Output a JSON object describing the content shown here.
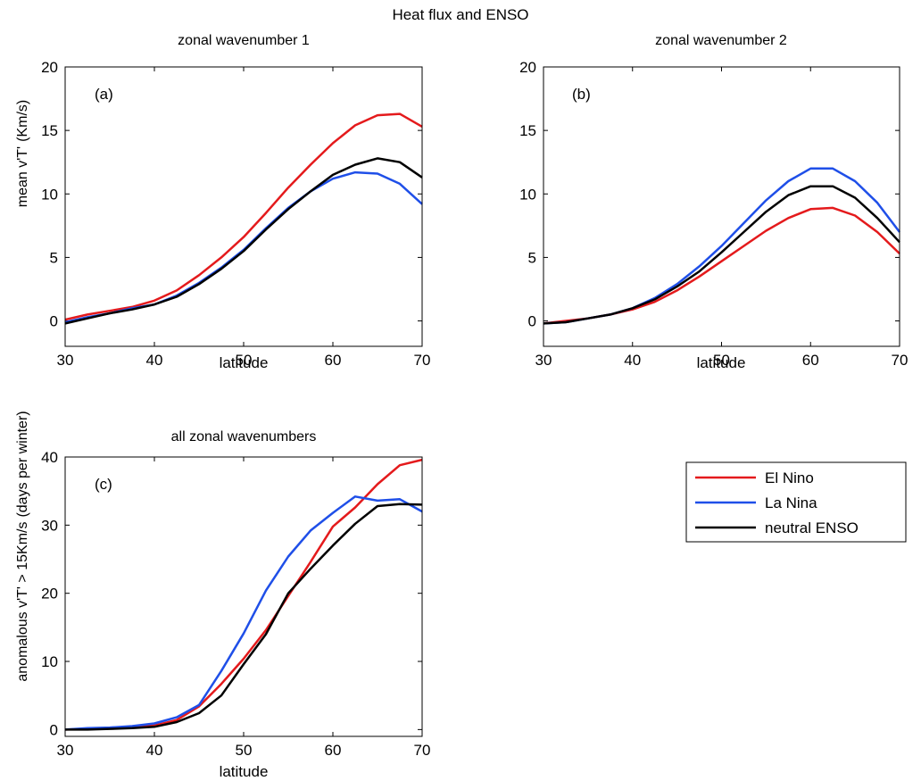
{
  "figure": {
    "suptitle": "Heat flux and ENSO"
  },
  "legend": {
    "placement": "right",
    "entries": [
      {
        "label": "El Nino",
        "color": "#e41a1c"
      },
      {
        "label": "La Nina",
        "color": "#1f4fe8"
      },
      {
        "label": "neutral ENSO",
        "color": "#000000"
      }
    ]
  },
  "chart_data": [
    {
      "type": "line",
      "title": "zonal wavenumber 1",
      "panel_label": "(a)",
      "xlabel": "latitude",
      "ylabel_main": "mean v'T'",
      "ylabel_unit": "(Km/s)",
      "xlim": [
        30,
        70
      ],
      "ylim": [
        -2,
        20
      ],
      "xticks": [
        30,
        40,
        50,
        60,
        70
      ],
      "yticks": [
        0,
        5,
        10,
        15,
        20
      ],
      "grid": false,
      "x": [
        30,
        32.5,
        35,
        37.5,
        40,
        42.5,
        45,
        47.5,
        50,
        52.5,
        55,
        57.5,
        60,
        62.5,
        65,
        67.5,
        70
      ],
      "series": [
        {
          "name": "El Nino",
          "color": "#e41a1c",
          "values": [
            0.1,
            0.5,
            0.8,
            1.1,
            1.6,
            2.4,
            3.6,
            5.0,
            6.6,
            8.5,
            10.5,
            12.3,
            14.0,
            15.4,
            16.2,
            16.3,
            15.3
          ]
        },
        {
          "name": "La Nina",
          "color": "#1f4fe8",
          "values": [
            -0.1,
            0.3,
            0.6,
            1.0,
            1.3,
            2.0,
            3.0,
            4.2,
            5.6,
            7.3,
            8.9,
            10.2,
            11.2,
            11.7,
            11.6,
            10.8,
            9.2
          ]
        },
        {
          "name": "neutral ENSO",
          "color": "#000000",
          "values": [
            -0.2,
            0.2,
            0.6,
            0.9,
            1.3,
            1.9,
            2.9,
            4.1,
            5.5,
            7.2,
            8.8,
            10.2,
            11.5,
            12.3,
            12.8,
            12.5,
            11.3
          ]
        }
      ]
    },
    {
      "type": "line",
      "title": "zonal wavenumber 2",
      "panel_label": "(b)",
      "xlabel": "latitude",
      "xlim": [
        30,
        70
      ],
      "ylim": [
        -2,
        20
      ],
      "xticks": [
        30,
        40,
        50,
        60,
        70
      ],
      "yticks": [
        0,
        5,
        10,
        15,
        20
      ],
      "grid": false,
      "x": [
        30,
        32.5,
        35,
        37.5,
        40,
        42.5,
        45,
        47.5,
        50,
        52.5,
        55,
        57.5,
        60,
        62.5,
        65,
        67.5,
        70
      ],
      "series": [
        {
          "name": "El Nino",
          "color": "#e41a1c",
          "values": [
            -0.2,
            0.0,
            0.2,
            0.5,
            0.9,
            1.5,
            2.4,
            3.5,
            4.7,
            5.9,
            7.1,
            8.1,
            8.8,
            8.9,
            8.3,
            7.0,
            5.3
          ]
        },
        {
          "name": "La Nina",
          "color": "#1f4fe8",
          "values": [
            -0.2,
            -0.1,
            0.2,
            0.5,
            1.0,
            1.8,
            2.9,
            4.3,
            5.9,
            7.7,
            9.5,
            11.0,
            12.0,
            12.0,
            11.0,
            9.3,
            7.0
          ]
        },
        {
          "name": "neutral ENSO",
          "color": "#000000",
          "values": [
            -0.2,
            -0.1,
            0.2,
            0.5,
            1.0,
            1.7,
            2.7,
            3.9,
            5.4,
            7.0,
            8.6,
            9.9,
            10.6,
            10.6,
            9.7,
            8.1,
            6.2
          ]
        }
      ]
    },
    {
      "type": "line",
      "title": "all zonal wavenumbers",
      "panel_label": "(c)",
      "xlabel": "latitude",
      "ylabel_main": "anomalous v'T' > 15Km/s",
      "ylabel_unit": "(days per winter)",
      "xlim": [
        30,
        70
      ],
      "ylim": [
        -1,
        40
      ],
      "xticks": [
        30,
        40,
        50,
        60,
        70
      ],
      "yticks": [
        0,
        10,
        20,
        30,
        40
      ],
      "grid": false,
      "x": [
        30,
        32.5,
        35,
        37.5,
        40,
        42.5,
        45,
        47.5,
        50,
        52.5,
        55,
        57.5,
        60,
        62.5,
        65,
        67.5,
        70
      ],
      "series": [
        {
          "name": "El Nino",
          "color": "#e41a1c",
          "values": [
            0.0,
            0.1,
            0.2,
            0.4,
            0.6,
            1.4,
            3.4,
            6.7,
            10.4,
            14.6,
            19.6,
            24.6,
            29.8,
            32.6,
            36.0,
            38.8,
            39.6
          ]
        },
        {
          "name": "La Nina",
          "color": "#1f4fe8",
          "values": [
            0.0,
            0.2,
            0.3,
            0.5,
            0.9,
            1.8,
            3.6,
            8.6,
            14.1,
            20.4,
            25.4,
            29.2,
            31.8,
            34.2,
            33.6,
            33.8,
            32.0
          ]
        },
        {
          "name": "neutral ENSO",
          "color": "#000000",
          "values": [
            0.0,
            0.0,
            0.1,
            0.2,
            0.4,
            1.1,
            2.4,
            5.0,
            9.6,
            14.0,
            20.0,
            23.6,
            27.0,
            30.2,
            32.8,
            33.1,
            33.0
          ]
        }
      ]
    }
  ]
}
